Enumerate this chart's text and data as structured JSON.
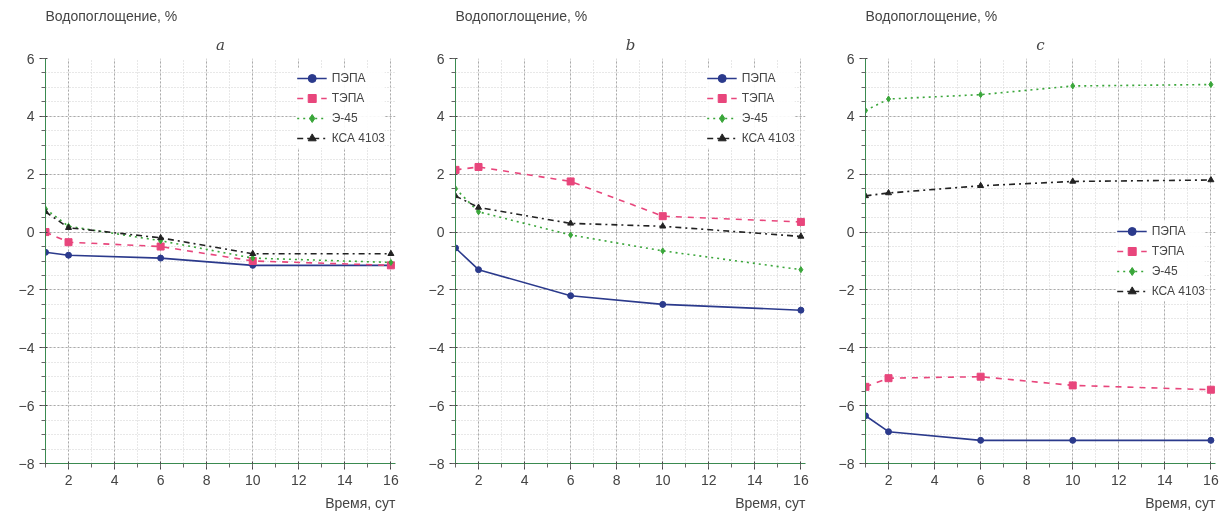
{
  "chart_data": [
    {
      "type": "line",
      "ylabel": "Водопоглощение, %",
      "xlabel": "Время, сут",
      "annotations": [
        "a"
      ],
      "x": [
        1,
        2,
        6,
        10,
        16
      ],
      "xlim": [
        1,
        16.2
      ],
      "ylim": [
        -8,
        6
      ],
      "xticks": [
        2,
        4,
        6,
        8,
        10,
        12,
        14,
        16
      ],
      "yticks": [
        -8,
        -6,
        -4,
        -2,
        0,
        2,
        4,
        6
      ],
      "grid": true,
      "legend": "top right",
      "series": [
        {
          "name": "ПЭПА",
          "color": "#2b3a8c",
          "line_style": "solid",
          "marker": "circle",
          "values": [
            -0.7,
            -0.8,
            -0.9,
            -1.15,
            -1.15
          ]
        },
        {
          "name": "ТЭПА",
          "color": "#e8467c",
          "line_style": "dashed",
          "marker": "square",
          "values": [
            0,
            -0.35,
            -0.5,
            -1.0,
            -1.15
          ]
        },
        {
          "name": "Э-45",
          "color": "#3aa63a",
          "line_style": "dotted",
          "marker": "diamond",
          "values": [
            0.8,
            0.2,
            -0.3,
            -0.9,
            -1.05
          ]
        },
        {
          "name": "КСА 4103",
          "color": "#222222",
          "line_style": "dashdot",
          "marker": "triangle",
          "values": [
            0.7,
            0.15,
            -0.2,
            -0.75,
            -0.75
          ]
        }
      ]
    },
    {
      "type": "line",
      "ylabel": "Водопоглощение, %",
      "xlabel": "Время, сут",
      "annotations": [
        "b"
      ],
      "x": [
        1,
        2,
        6,
        10,
        16
      ],
      "xlim": [
        1,
        16.2
      ],
      "ylim": [
        -8,
        6
      ],
      "xticks": [
        2,
        4,
        6,
        8,
        10,
        12,
        14,
        16
      ],
      "yticks": [
        -8,
        -6,
        -4,
        -2,
        0,
        2,
        4,
        6
      ],
      "grid": true,
      "legend": "top right",
      "series": [
        {
          "name": "ПЭПА",
          "color": "#2b3a8c",
          "line_style": "solid",
          "marker": "circle",
          "values": [
            -0.55,
            -1.3,
            -2.2,
            -2.5,
            -2.7
          ]
        },
        {
          "name": "ТЭПА",
          "color": "#e8467c",
          "line_style": "dashed",
          "marker": "square",
          "values": [
            2.15,
            2.25,
            1.75,
            0.55,
            0.35
          ]
        },
        {
          "name": "Э-45",
          "color": "#3aa63a",
          "line_style": "dotted",
          "marker": "diamond",
          "values": [
            1.5,
            0.7,
            -0.1,
            -0.65,
            -1.3
          ]
        },
        {
          "name": "КСА 4103",
          "color": "#222222",
          "line_style": "dashdot",
          "marker": "triangle",
          "values": [
            1.25,
            0.85,
            0.3,
            0.2,
            -0.15
          ]
        }
      ]
    },
    {
      "type": "line",
      "ylabel": "Водопоглощение, %",
      "xlabel": "Время, сут",
      "annotations": [
        "c"
      ],
      "x": [
        1,
        2,
        6,
        10,
        16
      ],
      "xlim": [
        1,
        16.2
      ],
      "ylim": [
        -8,
        6
      ],
      "xticks": [
        2,
        4,
        6,
        8,
        10,
        12,
        14,
        16
      ],
      "yticks": [
        -8,
        -6,
        -4,
        -2,
        0,
        2,
        4,
        6
      ],
      "grid": true,
      "legend": "right",
      "series": [
        {
          "name": "ПЭПА",
          "color": "#2b3a8c",
          "line_style": "solid",
          "marker": "circle",
          "values": [
            -6.35,
            -6.9,
            -7.2,
            -7.2,
            -7.2
          ]
        },
        {
          "name": "ТЭПА",
          "color": "#e8467c",
          "line_style": "dashed",
          "marker": "square",
          "values": [
            -5.35,
            -5.05,
            -5.0,
            -5.3,
            -5.45
          ]
        },
        {
          "name": "Э-45",
          "color": "#3aa63a",
          "line_style": "dotted",
          "marker": "diamond",
          "values": [
            4.2,
            4.6,
            4.75,
            5.05,
            5.1
          ]
        },
        {
          "name": "КСА 4103",
          "color": "#222222",
          "line_style": "dashdot",
          "marker": "triangle",
          "values": [
            1.25,
            1.35,
            1.6,
            1.75,
            1.8
          ]
        }
      ]
    }
  ]
}
